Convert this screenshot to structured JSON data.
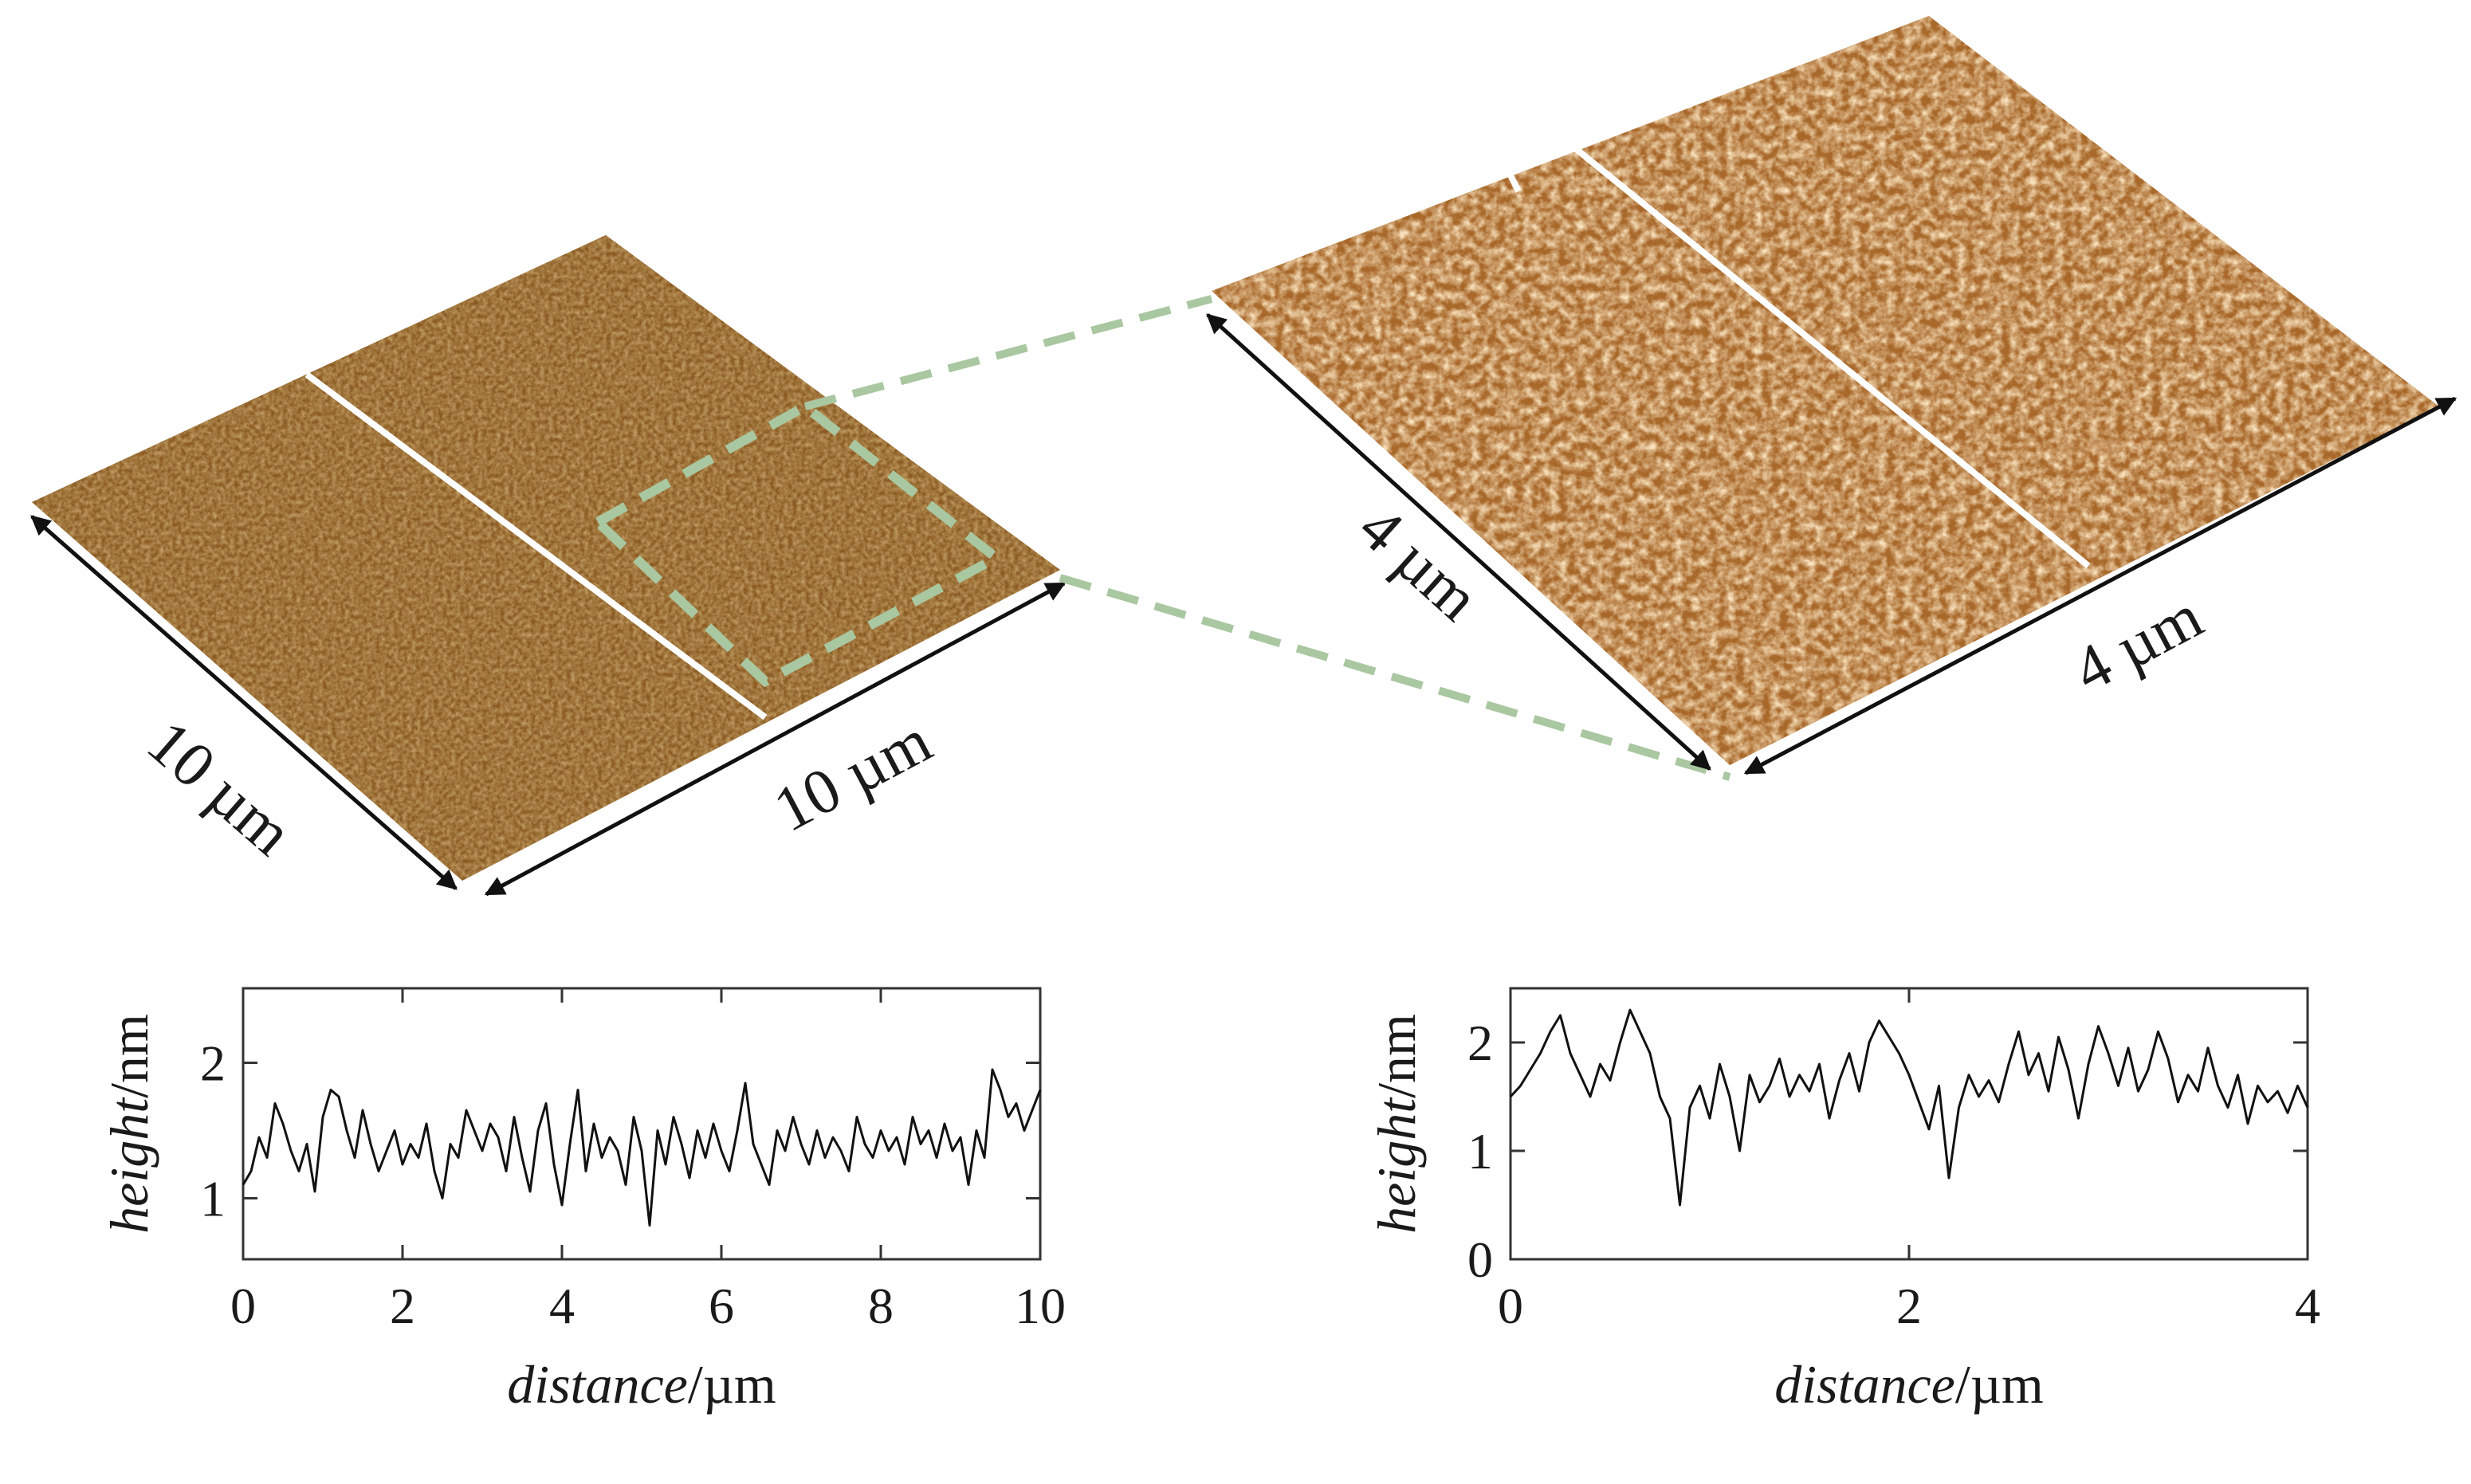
{
  "afm": {
    "large_scan": {
      "edge_label_1": "10 µm",
      "edge_label_2": "10 µm",
      "base_color": "#8a5a22",
      "highlight_color": "#d9a45c"
    },
    "zoom_scan": {
      "edge_label_1": "4 µm",
      "edge_label_2": "4 µm",
      "base_color": "#a8682a",
      "highlight_color": "#f2c382"
    },
    "zoom_box_color": "#a9c7a0"
  },
  "chart_data": [
    {
      "type": "line",
      "xlabel_italic": "distance",
      "xlabel_unit": "/µm",
      "ylabel_italic": "height",
      "ylabel_unit": "/nm",
      "xlim": [
        0,
        10
      ],
      "ylim": [
        0.55,
        2.55
      ],
      "xticks": [
        "0",
        "2",
        "4",
        "6",
        "8",
        "10"
      ],
      "yticks": [
        "1",
        "2"
      ],
      "series": [
        {
          "x": [
            0,
            0.1,
            0.2,
            0.3,
            0.4,
            0.5,
            0.6,
            0.7,
            0.8,
            0.9,
            1.0,
            1.1,
            1.2,
            1.3,
            1.4,
            1.5,
            1.6,
            1.7,
            1.8,
            1.9,
            2.0,
            2.1,
            2.2,
            2.3,
            2.4,
            2.5,
            2.6,
            2.7,
            2.8,
            2.9,
            3.0,
            3.1,
            3.2,
            3.3,
            3.4,
            3.5,
            3.6,
            3.7,
            3.8,
            3.9,
            4.0,
            4.1,
            4.2,
            4.3,
            4.4,
            4.5,
            4.6,
            4.7,
            4.8,
            4.9,
            5.0,
            5.1,
            5.2,
            5.3,
            5.4,
            5.5,
            5.6,
            5.7,
            5.8,
            5.9,
            6.0,
            6.1,
            6.2,
            6.3,
            6.4,
            6.5,
            6.6,
            6.7,
            6.8,
            6.9,
            7.0,
            7.1,
            7.2,
            7.3,
            7.4,
            7.5,
            7.6,
            7.7,
            7.8,
            7.9,
            8.0,
            8.1,
            8.2,
            8.3,
            8.4,
            8.5,
            8.6,
            8.7,
            8.8,
            8.9,
            9.0,
            9.1,
            9.2,
            9.3,
            9.4,
            9.5,
            9.6,
            9.7,
            9.8,
            9.9,
            10.0
          ],
          "y": [
            1.1,
            1.2,
            1.45,
            1.3,
            1.7,
            1.55,
            1.35,
            1.2,
            1.4,
            1.05,
            1.6,
            1.8,
            1.75,
            1.5,
            1.3,
            1.65,
            1.4,
            1.2,
            1.35,
            1.5,
            1.25,
            1.4,
            1.3,
            1.55,
            1.2,
            1.0,
            1.4,
            1.3,
            1.65,
            1.5,
            1.35,
            1.55,
            1.45,
            1.2,
            1.6,
            1.3,
            1.05,
            1.5,
            1.7,
            1.25,
            0.95,
            1.4,
            1.8,
            1.2,
            1.55,
            1.3,
            1.45,
            1.35,
            1.1,
            1.6,
            1.35,
            0.8,
            1.5,
            1.25,
            1.6,
            1.4,
            1.15,
            1.5,
            1.3,
            1.55,
            1.35,
            1.2,
            1.5,
            1.85,
            1.4,
            1.25,
            1.1,
            1.5,
            1.35,
            1.6,
            1.4,
            1.25,
            1.5,
            1.3,
            1.45,
            1.35,
            1.2,
            1.6,
            1.4,
            1.3,
            1.5,
            1.35,
            1.45,
            1.25,
            1.6,
            1.4,
            1.5,
            1.3,
            1.55,
            1.35,
            1.45,
            1.1,
            1.5,
            1.3,
            1.95,
            1.8,
            1.6,
            1.7,
            1.5,
            1.65,
            1.8
          ]
        }
      ]
    },
    {
      "type": "line",
      "xlabel_italic": "distance",
      "xlabel_unit": "/µm",
      "ylabel_italic": "height",
      "ylabel_unit": "/nm",
      "xlim": [
        0,
        4
      ],
      "ylim": [
        0,
        2.5
      ],
      "xticks": [
        "0",
        "2",
        "4"
      ],
      "yticks": [
        "0",
        "1",
        "2"
      ],
      "series": [
        {
          "x": [
            0,
            0.05,
            0.1,
            0.15,
            0.2,
            0.25,
            0.3,
            0.35,
            0.4,
            0.45,
            0.5,
            0.55,
            0.6,
            0.65,
            0.7,
            0.75,
            0.8,
            0.85,
            0.9,
            0.95,
            1.0,
            1.05,
            1.1,
            1.15,
            1.2,
            1.25,
            1.3,
            1.35,
            1.4,
            1.45,
            1.5,
            1.55,
            1.6,
            1.65,
            1.7,
            1.75,
            1.8,
            1.85,
            1.9,
            1.95,
            2.0,
            2.05,
            2.1,
            2.15,
            2.2,
            2.25,
            2.3,
            2.35,
            2.4,
            2.45,
            2.5,
            2.55,
            2.6,
            2.65,
            2.7,
            2.75,
            2.8,
            2.85,
            2.9,
            2.95,
            3.0,
            3.05,
            3.1,
            3.15,
            3.2,
            3.25,
            3.3,
            3.35,
            3.4,
            3.45,
            3.5,
            3.55,
            3.6,
            3.65,
            3.7,
            3.75,
            3.8,
            3.85,
            3.9,
            3.95,
            4.0
          ],
          "y": [
            1.5,
            1.6,
            1.75,
            1.9,
            2.1,
            2.25,
            1.9,
            1.7,
            1.5,
            1.8,
            1.65,
            2.0,
            2.3,
            2.1,
            1.9,
            1.5,
            1.3,
            0.5,
            1.4,
            1.6,
            1.3,
            1.8,
            1.5,
            1.0,
            1.7,
            1.45,
            1.6,
            1.85,
            1.5,
            1.7,
            1.55,
            1.8,
            1.3,
            1.65,
            1.9,
            1.55,
            2.0,
            2.2,
            2.05,
            1.9,
            1.7,
            1.45,
            1.2,
            1.6,
            0.75,
            1.4,
            1.7,
            1.5,
            1.65,
            1.45,
            1.8,
            2.1,
            1.7,
            1.9,
            1.55,
            2.05,
            1.75,
            1.3,
            1.8,
            2.15,
            1.9,
            1.6,
            1.95,
            1.55,
            1.75,
            2.1,
            1.85,
            1.45,
            1.7,
            1.55,
            1.95,
            1.6,
            1.4,
            1.7,
            1.25,
            1.6,
            1.45,
            1.55,
            1.35,
            1.6,
            1.4
          ]
        }
      ]
    }
  ]
}
